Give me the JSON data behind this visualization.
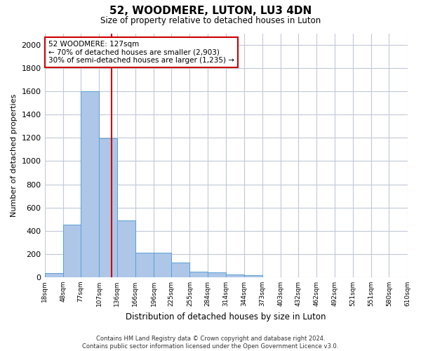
{
  "title": "52, WOODMERE, LUTON, LU3 4DN",
  "subtitle": "Size of property relative to detached houses in Luton",
  "xlabel": "Distribution of detached houses by size in Luton",
  "ylabel": "Number of detached properties",
  "footer_line1": "Contains HM Land Registry data © Crown copyright and database right 2024.",
  "footer_line2": "Contains public sector information licensed under the Open Government Licence v3.0.",
  "annotation_line1": "52 WOODMERE: 127sqm",
  "annotation_line2": "← 70% of detached houses are smaller (2,903)",
  "annotation_line3": "30% of semi-detached houses are larger (1,235) →",
  "property_size": 127,
  "red_line_x": 127,
  "bar_color": "#aec6e8",
  "bar_edge_color": "#5a9fd4",
  "red_line_color": "#cc0000",
  "annotation_box_edge_color": "#cc0000",
  "grid_color": "#c0c8d8",
  "bin_edges": [
    18,
    48,
    77,
    107,
    136,
    166,
    196,
    225,
    255,
    284,
    314,
    344,
    373,
    403,
    432,
    462,
    492,
    521,
    551,
    580,
    610
  ],
  "bin_labels": [
    "18sqm",
    "48sqm",
    "77sqm",
    "107sqm",
    "136sqm",
    "166sqm",
    "196sqm",
    "225sqm",
    "255sqm",
    "284sqm",
    "314sqm",
    "344sqm",
    "373sqm",
    "403sqm",
    "432sqm",
    "462sqm",
    "492sqm",
    "521sqm",
    "551sqm",
    "580sqm",
    "610sqm"
  ],
  "bar_heights": [
    35,
    455,
    1600,
    1195,
    490,
    210,
    210,
    125,
    50,
    40,
    25,
    15,
    0,
    0,
    0,
    0,
    0,
    0,
    0,
    0
  ],
  "ylim": [
    0,
    2100
  ],
  "yticks": [
    0,
    200,
    400,
    600,
    800,
    1000,
    1200,
    1400,
    1600,
    1800,
    2000
  ]
}
